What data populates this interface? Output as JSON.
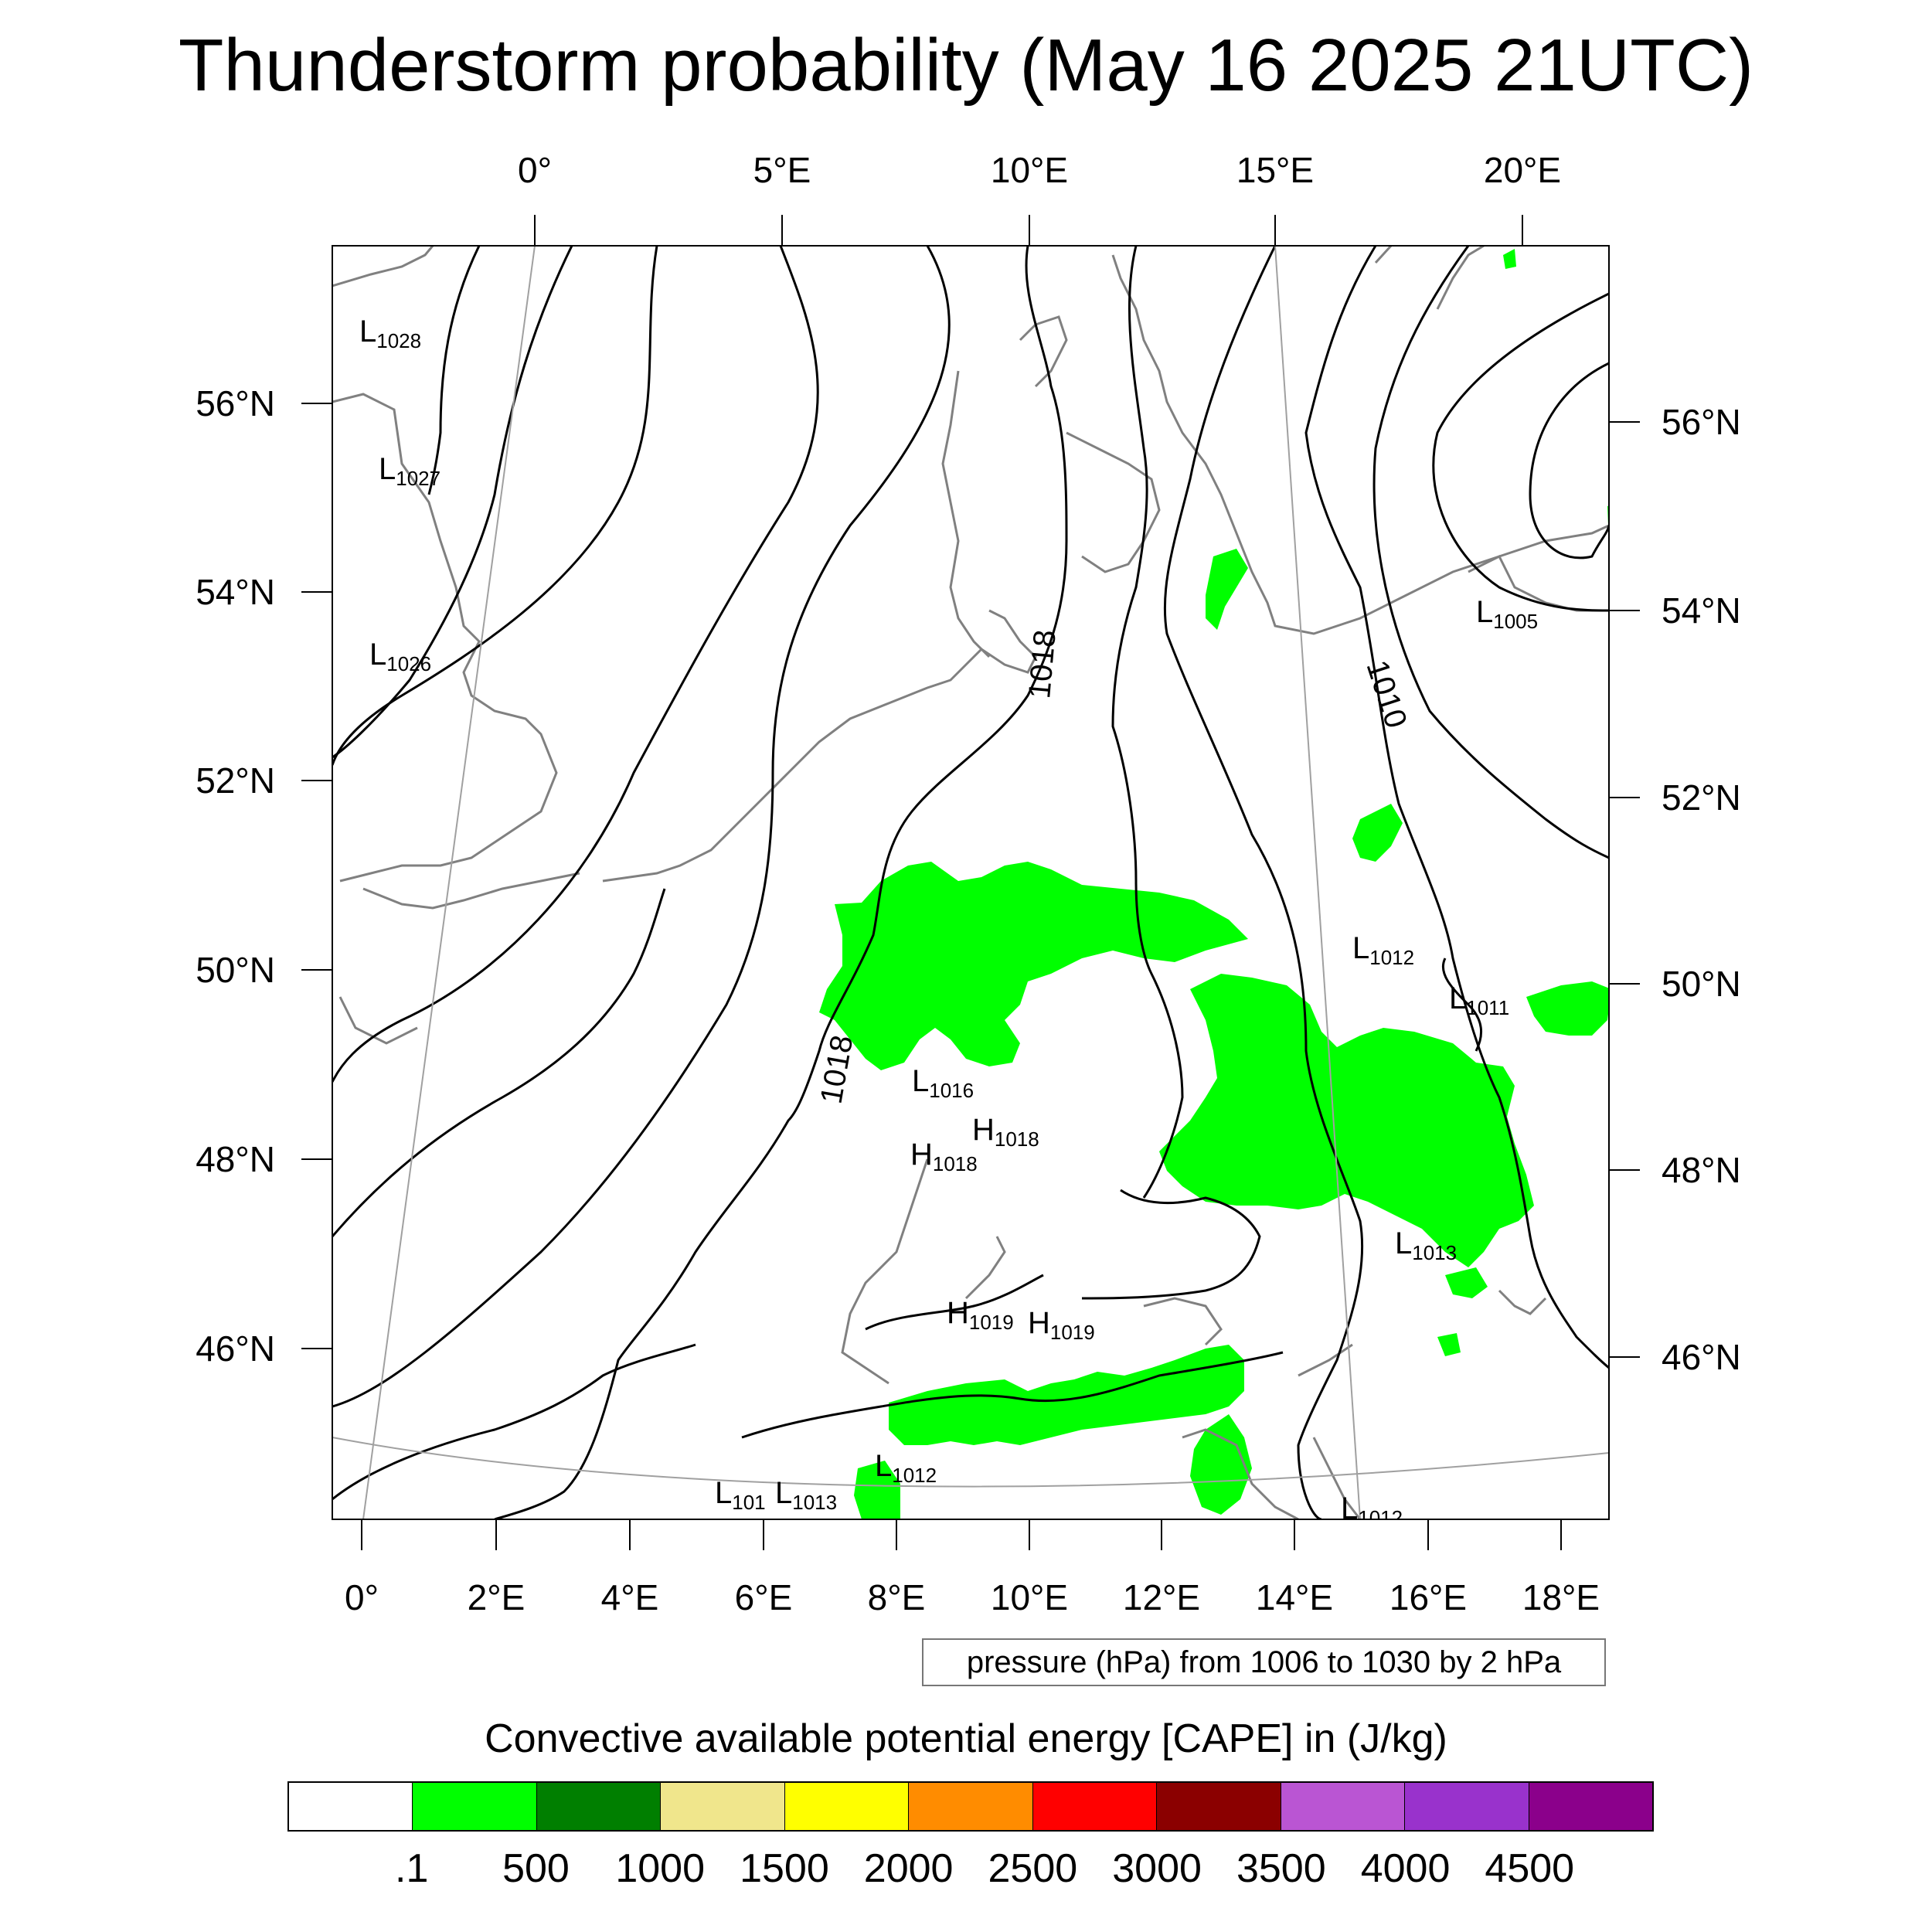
{
  "title": "Thunderstorm probability (May 16 2025 21UTC)",
  "top_axis_labels": [
    "0°",
    "5°E",
    "10°E",
    "15°E",
    "20°E"
  ],
  "bottom_axis_labels": [
    "0°",
    "2°E",
    "4°E",
    "6°E",
    "8°E",
    "10°E",
    "12°E",
    "14°E",
    "16°E",
    "18°E"
  ],
  "left_axis_labels": [
    "56°N",
    "54°N",
    "52°N",
    "50°N",
    "48°N",
    "46°N"
  ],
  "right_axis_labels": [
    "56°N",
    "54°N",
    "52°N",
    "50°N",
    "48°N",
    "46°N"
  ],
  "pressure_centers": [
    {
      "letter": "L",
      "value": "1028"
    },
    {
      "letter": "L",
      "value": "1027"
    },
    {
      "letter": "L",
      "value": "1026"
    },
    {
      "letter": "L",
      "value": "1005"
    },
    {
      "letter": "L",
      "value": "1012"
    },
    {
      "letter": "L",
      "value": "1011"
    },
    {
      "letter": "L",
      "value": "1016"
    },
    {
      "letter": "H",
      "value": "1018"
    },
    {
      "letter": "H",
      "value": "1018"
    },
    {
      "letter": "L",
      "value": "1013"
    },
    {
      "letter": "H",
      "value": "1019"
    },
    {
      "letter": "H",
      "value": "1019"
    },
    {
      "letter": "L",
      "value": "1012"
    },
    {
      "letter": "L",
      "value": "101"
    },
    {
      "letter": "L",
      "value": "1013"
    },
    {
      "letter": "L",
      "value": "1012"
    }
  ],
  "isobar_labels": [
    "1018",
    "1018",
    "1010"
  ],
  "info_text": "pressure (hPa) from 1006 to 1030 by 2 hPa",
  "colorbar": {
    "title": "Convective available potential energy [CAPE] in (J/kg)",
    "colors": [
      "#ffffff",
      "#00ff00",
      "#007f00",
      "#f0e68c",
      "#ffff00",
      "#ff8c00",
      "#ff0000",
      "#8b0000",
      "#ba55d3",
      "#9932cc",
      "#8b008b"
    ],
    "labels": [
      ".1",
      "500",
      "1000",
      "1500",
      "2000",
      "2500",
      "3000",
      "3500",
      "4000",
      "4500"
    ]
  },
  "cape_fill_color": "#00ff00"
}
